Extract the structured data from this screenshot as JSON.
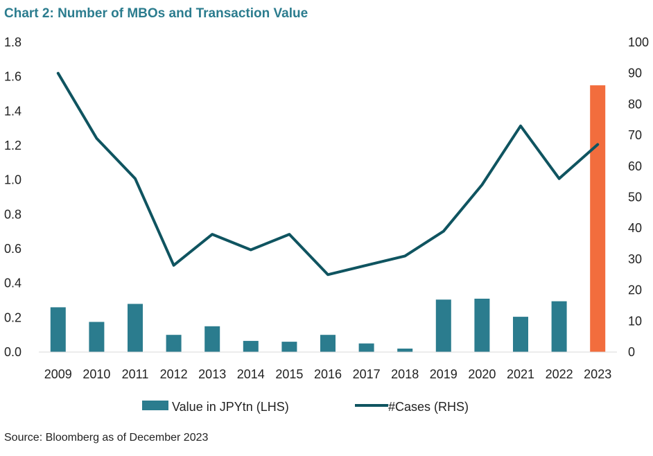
{
  "chart_data": {
    "type": "bar+line",
    "title": "Chart 2: Number of MBOs and Transaction Value",
    "source": "Source: Bloomberg as of December 2023",
    "categories": [
      "2009",
      "2010",
      "2011",
      "2012",
      "2013",
      "2014",
      "2015",
      "2016",
      "2017",
      "2018",
      "2019",
      "2020",
      "2021",
      "2022",
      "2023"
    ],
    "series": [
      {
        "name": "Value in JPYtn (LHS)",
        "type": "bar",
        "axis": "left",
        "values": [
          0.26,
          0.175,
          0.28,
          0.1,
          0.15,
          0.065,
          0.06,
          0.1,
          0.05,
          0.02,
          0.305,
          0.31,
          0.205,
          0.295,
          1.55
        ],
        "color": "#2b7c8e",
        "highlight_color": "#f26d3d",
        "highlight_index": 14
      },
      {
        "name": "#Cases (RHS)",
        "type": "line",
        "axis": "right",
        "values": [
          90,
          69,
          56,
          28,
          38,
          33,
          38,
          25,
          28,
          31,
          39,
          54,
          73,
          56,
          67
        ],
        "color": "#0f5460"
      }
    ],
    "y_left": {
      "min": 0,
      "max": 1.8,
      "ticks": [
        "0.0",
        "0.2",
        "0.4",
        "0.6",
        "0.8",
        "1.0",
        "1.2",
        "1.4",
        "1.6",
        "1.8"
      ]
    },
    "y_right": {
      "min": 0,
      "max": 100,
      "ticks": [
        "0",
        "10",
        "20",
        "30",
        "40",
        "50",
        "60",
        "70",
        "80",
        "90",
        "100"
      ]
    },
    "grid": false,
    "legend_position": "bottom"
  }
}
